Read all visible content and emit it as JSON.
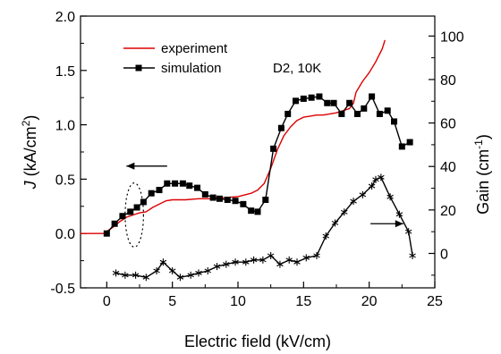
{
  "chart_data": {
    "type": "line",
    "xlabel": "Electric field (kV/cm)",
    "ylabel_left": {
      "italic": "J",
      "rest": " (kA/cm",
      "sup": "2",
      "end": ")"
    },
    "ylabel_right": {
      "main": "Gain (cm",
      "sup": "-1",
      "end": ")"
    },
    "annotation": "D2, 10K",
    "xlim": [
      -2,
      25
    ],
    "ylim_left": [
      -0.5,
      2.0
    ],
    "ylim_right": [
      -15.83,
      109.17
    ],
    "x_ticks": [
      0,
      5,
      10,
      15,
      20,
      25
    ],
    "x_tick_labels": [
      "0",
      "5",
      "10",
      "15",
      "20",
      "25"
    ],
    "y_left_ticks": [
      -0.5,
      0.0,
      0.5,
      1.0,
      1.5,
      2.0
    ],
    "y_left_tick_labels": [
      "-0.5",
      "0.0",
      "0.5",
      "1.0",
      "1.5",
      "2.0"
    ],
    "y_right_ticks": [
      0,
      20,
      40,
      60,
      80,
      100
    ],
    "y_right_tick_labels": [
      "0",
      "20",
      "40",
      "60",
      "80",
      "100"
    ],
    "legend": [
      {
        "label": "experiment",
        "color": "#dd0000",
        "marker": "none"
      },
      {
        "label": "simulation",
        "color": "#000000",
        "marker": "square"
      }
    ],
    "series": [
      {
        "name": "experiment",
        "axis": "left",
        "color": "#dd0000",
        "x": [
          -2.0,
          -1.0,
          -0.2,
          0.0,
          0.5,
          1.0,
          1.5,
          2.0,
          2.5,
          3.0,
          3.5,
          4.0,
          4.5,
          5.0,
          5.5,
          6.0,
          7.0,
          8.0,
          9.0,
          10.0,
          11.0,
          11.5,
          12.0,
          12.5,
          13.0,
          13.5,
          14.0,
          14.5,
          15.0,
          15.5,
          16.0,
          16.5,
          17.0,
          17.5,
          18.0,
          18.5,
          18.8,
          19.0,
          19.5,
          20.0,
          20.5,
          21.0,
          21.2
        ],
        "y": [
          0.0,
          0.0,
          0.0,
          0.02,
          0.06,
          0.11,
          0.15,
          0.17,
          0.19,
          0.2,
          0.24,
          0.27,
          0.3,
          0.31,
          0.31,
          0.31,
          0.32,
          0.32,
          0.33,
          0.34,
          0.37,
          0.4,
          0.46,
          0.6,
          0.77,
          0.9,
          0.98,
          1.04,
          1.07,
          1.08,
          1.09,
          1.09,
          1.1,
          1.11,
          1.13,
          1.15,
          1.2,
          1.3,
          1.4,
          1.48,
          1.58,
          1.7,
          1.78
        ]
      },
      {
        "name": "simulation",
        "axis": "left",
        "color": "#000000",
        "marker": "square",
        "x": [
          0.0,
          0.6,
          1.2,
          1.8,
          2.3,
          2.8,
          3.4,
          4.0,
          4.6,
          5.2,
          5.8,
          6.3,
          6.9,
          7.5,
          8.1,
          8.6,
          9.2,
          9.8,
          10.4,
          11.0,
          11.5,
          12.1,
          12.7,
          13.3,
          13.8,
          14.4,
          15.0,
          15.6,
          16.2,
          16.8,
          17.3,
          17.9,
          18.5,
          19.1,
          19.6,
          20.2,
          20.8,
          21.4,
          21.9,
          22.5,
          23.1
        ],
        "y": [
          0.0,
          0.09,
          0.16,
          0.2,
          0.24,
          0.29,
          0.37,
          0.4,
          0.46,
          0.46,
          0.46,
          0.44,
          0.42,
          0.36,
          0.33,
          0.32,
          0.31,
          0.3,
          0.27,
          0.21,
          0.2,
          0.31,
          0.78,
          0.97,
          1.1,
          1.22,
          1.24,
          1.25,
          1.26,
          1.2,
          1.2,
          1.1,
          1.2,
          1.1,
          1.15,
          1.26,
          1.1,
          1.13,
          1.03,
          0.8,
          0.84
        ]
      },
      {
        "name": "gain",
        "axis": "right",
        "color": "#000000",
        "marker": "asterisk",
        "x": [
          0.7,
          1.4,
          2.2,
          3.0,
          3.8,
          4.3,
          5.0,
          5.6,
          6.4,
          7.0,
          7.7,
          8.4,
          9.1,
          9.8,
          10.6,
          11.2,
          11.9,
          12.5,
          13.2,
          13.9,
          14.5,
          15.2,
          16.0,
          16.7,
          17.4,
          18.1,
          18.8,
          19.5,
          20.2,
          20.5,
          20.9,
          21.6,
          22.3,
          23.0,
          23.3
        ],
        "y": [
          -9,
          -10,
          -10,
          -11,
          -8,
          -4,
          -8,
          -11,
          -10,
          -9,
          -8,
          -6,
          -5,
          -4,
          -4,
          -3,
          -3,
          -1,
          -5,
          -3,
          -4,
          -2,
          -1,
          8,
          14,
          19,
          24,
          27,
          31,
          34,
          35,
          26,
          18,
          10,
          -1
        ]
      }
    ],
    "ellipse_annotation": {
      "center_x": 2.1,
      "center_y": 0.17,
      "width_x": 1.4,
      "height_y": 0.59
    },
    "arrows": [
      {
        "direction": "left",
        "x_start": 4.6,
        "x_end": 1.5,
        "y": 0.62,
        "axis": "left"
      },
      {
        "direction": "right",
        "x_start": 20.1,
        "x_end": 22.6,
        "y": 0.09,
        "axis": "left"
      }
    ]
  }
}
